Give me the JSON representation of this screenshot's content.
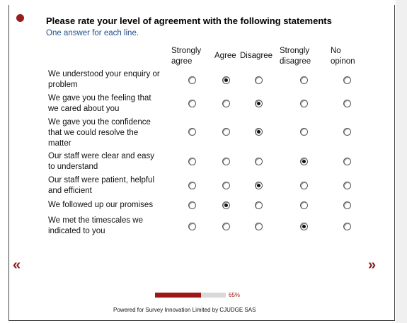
{
  "survey": {
    "title": "Please rate your level of agreement with the following statements",
    "subtitle": "One answer for each line.",
    "columns": [
      {
        "line1": "Strongly",
        "line2": "agree"
      },
      {
        "line1": "Agree",
        "line2": ""
      },
      {
        "line1": "Disagree",
        "line2": ""
      },
      {
        "line1": "Strongly",
        "line2": "disagree"
      },
      {
        "line1": "No",
        "line2": "opinon"
      }
    ],
    "rows": [
      {
        "lines": [
          "We understood your enquiry or",
          "problem"
        ],
        "selected": 1
      },
      {
        "lines": [
          "We gave you the feeling that",
          "we cared about you"
        ],
        "selected": 2
      },
      {
        "lines": [
          "We gave you the confidence",
          "that we could resolve the",
          "matter"
        ],
        "selected": 2
      },
      {
        "lines": [
          "Our staff were clear and easy",
          "to understand"
        ],
        "selected": 3
      },
      {
        "lines": [
          "Our staff were patient, helpful",
          "and efficient"
        ],
        "selected": 2
      },
      {
        "lines": [
          "We followed up our promises"
        ],
        "selected": 1
      },
      {
        "lines": [
          "We met the timescales we",
          "indicated to you"
        ],
        "selected": 3
      }
    ]
  },
  "navigation": {
    "prev_label": "«",
    "next_label": "»"
  },
  "progress": {
    "percent": 65,
    "label": "65%"
  },
  "footer": {
    "text": "Powered for Survey Innovation Limited by CJUDGE SAS"
  },
  "colors": {
    "accent": "#8b1a1a",
    "subtitle": "#1f4e8c",
    "progress_track": "#d9d9d9"
  }
}
